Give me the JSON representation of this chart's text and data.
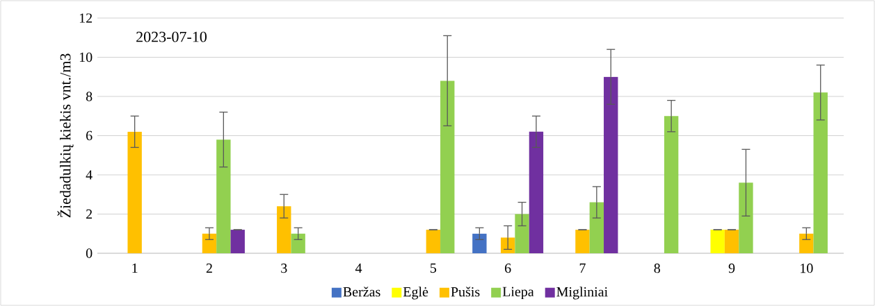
{
  "chart_data": {
    "type": "bar",
    "ylabel": "Žiedadulkių kiekis vnt./m3",
    "annotations": [
      "2023-07-10"
    ],
    "categories": [
      "1",
      "2",
      "3",
      "4",
      "5",
      "6",
      "7",
      "8",
      "9",
      "10"
    ],
    "series": [
      {
        "name": "Beržas",
        "color": "#4472c4",
        "values": [
          0,
          0,
          0,
          0,
          0,
          1.0,
          0,
          0,
          0,
          0
        ],
        "errors": [
          null,
          null,
          null,
          null,
          null,
          0.3,
          null,
          null,
          null,
          null
        ]
      },
      {
        "name": "Eglė",
        "color": "#ffff00",
        "values": [
          0,
          0,
          0,
          0,
          0,
          0,
          0,
          0,
          1.2,
          0
        ],
        "errors": [
          null,
          null,
          null,
          null,
          null,
          null,
          null,
          null,
          0,
          null
        ]
      },
      {
        "name": "Pušis",
        "color": "#ffc000",
        "values": [
          6.2,
          1.0,
          2.4,
          0,
          1.2,
          0.8,
          1.2,
          0,
          1.2,
          1.0
        ],
        "errors": [
          0.8,
          0.3,
          0.6,
          null,
          0,
          0.6,
          0,
          null,
          0,
          0.3
        ]
      },
      {
        "name": "Liepa",
        "color": "#92d050",
        "values": [
          0,
          5.8,
          1.0,
          0,
          8.8,
          2.0,
          2.6,
          7.0,
          3.6,
          8.2
        ],
        "errors": [
          null,
          1.4,
          0.3,
          null,
          2.3,
          0.6,
          0.8,
          0.8,
          1.7,
          1.4
        ]
      },
      {
        "name": "Migliniai",
        "color": "#7030a0",
        "values": [
          0,
          1.2,
          0,
          0,
          0,
          6.2,
          9.0,
          0,
          0,
          0
        ],
        "errors": [
          null,
          0,
          null,
          null,
          null,
          0.8,
          1.4,
          null,
          null,
          null
        ]
      }
    ],
    "ylim": [
      0,
      12
    ],
    "yticks": [
      0,
      2,
      4,
      6,
      8,
      10,
      12
    ],
    "grid": "y",
    "legend": "bottom"
  }
}
